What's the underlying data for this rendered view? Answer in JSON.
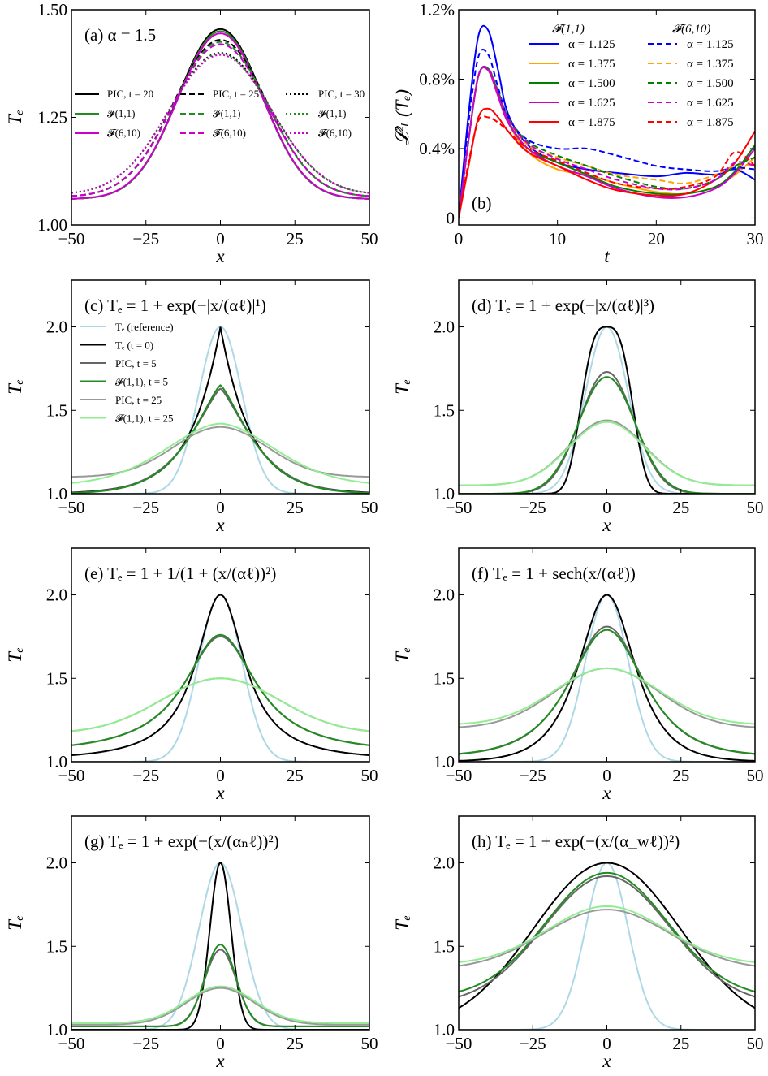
{
  "chart_data": [
    {
      "id": "a",
      "type": "line",
      "title": "(a) α = 1.5",
      "xlabel": "x",
      "ylabel": "Tₑ",
      "xlim": [
        -50,
        50
      ],
      "ylim": [
        1.0,
        1.5
      ],
      "xticks": [
        -50,
        -25,
        0,
        25,
        50
      ],
      "xticklabels": [
        "−50",
        "−25",
        "0",
        "25",
        "50"
      ],
      "yticks": [
        1.0,
        1.25,
        1.5
      ],
      "yticklabels": [
        "1.00",
        "1.25",
        "1.50"
      ],
      "legend_columns": 3,
      "series": [
        {
          "name": "PIC, t = 20",
          "color": "#000000",
          "dash": "",
          "f": "gen",
          "base": 1.06,
          "amp": 0.395,
          "w": 20,
          "p": 2
        },
        {
          "name": "𝓕(1,1)",
          "color": "#228b22",
          "dash": "",
          "f": "gen",
          "base": 1.06,
          "amp": 0.39,
          "w": 20,
          "p": 2
        },
        {
          "name": "𝓕(6,10)",
          "color": "#cc00cc",
          "dash": "",
          "f": "gen",
          "base": 1.06,
          "amp": 0.385,
          "w": 20.2,
          "p": 2
        },
        {
          "name": "PIC, t = 25",
          "color": "#000000",
          "dash": "7,4",
          "f": "gen",
          "base": 1.065,
          "amp": 0.365,
          "w": 22,
          "p": 2
        },
        {
          "name": "𝓕(1,1)",
          "color": "#228b22",
          "dash": "7,4",
          "f": "gen",
          "base": 1.065,
          "amp": 0.36,
          "w": 22,
          "p": 2
        },
        {
          "name": "𝓕(6,10)",
          "color": "#cc00cc",
          "dash": "7,4",
          "f": "gen",
          "base": 1.065,
          "amp": 0.355,
          "w": 22.2,
          "p": 2
        },
        {
          "name": "PIC, t = 30",
          "color": "#000000",
          "dash": "2,3",
          "f": "gen",
          "base": 1.07,
          "amp": 0.33,
          "w": 24,
          "p": 2
        },
        {
          "name": "𝓕(1,1)",
          "color": "#228b22",
          "dash": "2,3",
          "f": "gen",
          "base": 1.07,
          "amp": 0.328,
          "w": 24,
          "p": 2
        },
        {
          "name": "𝓕(6,10)",
          "color": "#cc00cc",
          "dash": "2,3",
          "f": "gen",
          "base": 1.07,
          "amp": 0.325,
          "w": 24.2,
          "p": 2
        }
      ]
    },
    {
      "id": "b",
      "type": "line",
      "title": "(b)",
      "xlabel": "t",
      "ylabel": "𝓛²ₜ (Tₑ)",
      "xlim": [
        0,
        30
      ],
      "ylim": [
        -0.04,
        1.2
      ],
      "unit": "%",
      "xticks": [
        0,
        10,
        20,
        30
      ],
      "xticklabels": [
        "0",
        "10",
        "20",
        "30"
      ],
      "yticks": [
        0,
        0.4,
        0.8,
        1.2
      ],
      "yticklabels": [
        "0",
        "0.4%",
        "0.8%",
        "1.2%"
      ],
      "legend_headers": [
        "𝓕(1,1)",
        "𝓕(6,10)"
      ],
      "x": [
        0,
        1,
        2,
        3,
        4,
        5,
        7,
        10,
        13,
        16,
        20,
        23,
        26,
        28,
        30
      ],
      "series": [
        {
          "name": "α = 1.125",
          "group": "𝓕(1,1)",
          "color": "#0000ff",
          "dash": "",
          "y": [
            0,
            0.6,
            1.05,
            1.08,
            0.85,
            0.6,
            0.42,
            0.32,
            0.28,
            0.26,
            0.24,
            0.26,
            0.25,
            0.28,
            0.22
          ]
        },
        {
          "name": "α = 1.375",
          "group": "𝓕(1,1)",
          "color": "#ffa500",
          "dash": "",
          "y": [
            0,
            0.45,
            0.82,
            0.85,
            0.7,
            0.55,
            0.38,
            0.28,
            0.25,
            0.2,
            0.15,
            0.14,
            0.18,
            0.25,
            0.35
          ]
        },
        {
          "name": "α = 1.500",
          "group": "𝓕(1,1)",
          "color": "#008000",
          "dash": "",
          "y": [
            0,
            0.45,
            0.82,
            0.86,
            0.72,
            0.56,
            0.4,
            0.32,
            0.25,
            0.18,
            0.14,
            0.14,
            0.18,
            0.27,
            0.42
          ]
        },
        {
          "name": "α = 1.625",
          "group": "𝓕(1,1)",
          "color": "#cc00cc",
          "dash": "",
          "y": [
            0,
            0.45,
            0.82,
            0.85,
            0.7,
            0.55,
            0.4,
            0.3,
            0.24,
            0.17,
            0.12,
            0.12,
            0.17,
            0.26,
            0.4
          ]
        },
        {
          "name": "α = 1.875",
          "group": "𝓕(1,1)",
          "color": "#ff0000",
          "dash": "",
          "y": [
            0,
            0.3,
            0.58,
            0.63,
            0.58,
            0.5,
            0.38,
            0.3,
            0.22,
            0.16,
            0.13,
            0.14,
            0.22,
            0.32,
            0.5
          ]
        },
        {
          "name": "α = 1.125",
          "group": "𝓕(6,10)",
          "color": "#0000ff",
          "dash": "7,4",
          "y": [
            0,
            0.55,
            0.93,
            0.94,
            0.75,
            0.58,
            0.45,
            0.4,
            0.4,
            0.36,
            0.3,
            0.28,
            0.27,
            0.29,
            0.28
          ]
        },
        {
          "name": "α = 1.375",
          "group": "𝓕(6,10)",
          "color": "#ffa500",
          "dash": "7,4",
          "y": [
            0,
            0.45,
            0.82,
            0.86,
            0.72,
            0.57,
            0.42,
            0.35,
            0.3,
            0.25,
            0.22,
            0.2,
            0.25,
            0.3,
            0.3
          ]
        },
        {
          "name": "α = 1.500",
          "group": "𝓕(6,10)",
          "color": "#008000",
          "dash": "7,4",
          "y": [
            0,
            0.45,
            0.82,
            0.86,
            0.73,
            0.58,
            0.44,
            0.36,
            0.3,
            0.24,
            0.18,
            0.17,
            0.22,
            0.3,
            0.35
          ]
        },
        {
          "name": "α = 1.625",
          "group": "𝓕(6,10)",
          "color": "#cc00cc",
          "dash": "7,4",
          "y": [
            0,
            0.45,
            0.82,
            0.86,
            0.72,
            0.57,
            0.43,
            0.34,
            0.28,
            0.22,
            0.17,
            0.17,
            0.22,
            0.32,
            0.3
          ]
        },
        {
          "name": "α = 1.875",
          "group": "𝓕(6,10)",
          "color": "#ff0000",
          "dash": "7,4",
          "y": [
            0,
            0.32,
            0.56,
            0.58,
            0.55,
            0.5,
            0.4,
            0.33,
            0.26,
            0.2,
            0.17,
            0.18,
            0.24,
            0.38,
            0.3
          ]
        }
      ]
    },
    {
      "id": "c",
      "type": "line",
      "title": "(c) Tₑ = 1 + exp(−|x/(αℓ)|¹)",
      "xlabel": "x",
      "ylabel": "Tₑ",
      "xlim": [
        -50,
        50
      ],
      "ylim": [
        1.0,
        2.28
      ],
      "xticks": [
        -50,
        -25,
        0,
        25,
        50
      ],
      "xticklabels": [
        "−50",
        "−25",
        "0",
        "25",
        "50"
      ],
      "yticks": [
        1.0,
        1.5,
        2.0
      ],
      "yticklabels": [
        "1.0",
        "1.5",
        "2.0"
      ],
      "legend": true,
      "series": [
        {
          "name": "Tₑ (reference)",
          "color": "#add8e6",
          "f": "gen",
          "base": 1,
          "amp": 1,
          "w": 10.2,
          "p": 2
        },
        {
          "name": "Tₑ (t = 0)",
          "color": "#000000",
          "f": "gen",
          "base": 1,
          "amp": 1,
          "w": 10.2,
          "p": 1
        },
        {
          "name": "PIC,   t = 5",
          "color": "#666666",
          "f": "gen",
          "base": 1.0,
          "amp": 0.63,
          "w": 15,
          "p": 1.3
        },
        {
          "name": "𝓕(1,1), t = 5",
          "color": "#228b22",
          "f": "gen",
          "base": 1.0,
          "amp": 0.65,
          "w": 14.5,
          "p": 1.3
        },
        {
          "name": "PIC,   t = 25",
          "color": "#999999",
          "f": "gen",
          "base": 1.1,
          "amp": 0.3,
          "w": 22,
          "p": 2
        },
        {
          "name": "𝓕(1,1), t = 25",
          "color": "#90ee90",
          "f": "gen",
          "base": 1.05,
          "amp": 0.37,
          "w": 26,
          "p": 1.8
        }
      ]
    },
    {
      "id": "d",
      "type": "line",
      "title": "(d) Tₑ = 1 + exp(−|x/(αℓ)|³)",
      "xlabel": "x",
      "ylabel": "Tₑ",
      "xlim": [
        -50,
        50
      ],
      "ylim": [
        1.0,
        2.28
      ],
      "xticks": [
        -50,
        -25,
        0,
        25,
        50
      ],
      "xticklabels": [
        "−50",
        "−25",
        "0",
        "25",
        "50"
      ],
      "yticks": [
        1.0,
        1.5,
        2.0
      ],
      "yticklabels": [
        "1.0",
        "1.5",
        "2.0"
      ],
      "series": [
        {
          "name": "Tₑ (reference)",
          "color": "#add8e6",
          "f": "gen",
          "base": 1,
          "amp": 1,
          "w": 10.2,
          "p": 2
        },
        {
          "name": "Tₑ (t = 0)",
          "color": "#000000",
          "f": "gen",
          "base": 1,
          "amp": 1,
          "w": 10.2,
          "p": 3
        },
        {
          "name": "PIC, t = 5",
          "color": "#666666",
          "f": "gen",
          "base": 1.0,
          "amp": 0.73,
          "w": 13,
          "p": 2
        },
        {
          "name": "𝓕(1,1), t = 5",
          "color": "#228b22",
          "f": "gen",
          "base": 1.0,
          "amp": 0.7,
          "w": 13.5,
          "p": 2
        },
        {
          "name": "PIC, t = 25",
          "color": "#999999",
          "f": "gen",
          "base": 1.05,
          "amp": 0.39,
          "w": 18,
          "p": 2
        },
        {
          "name": "𝓕(1,1), t = 25",
          "color": "#90ee90",
          "f": "gen",
          "base": 1.05,
          "amp": 0.38,
          "w": 18,
          "p": 2
        }
      ]
    },
    {
      "id": "e",
      "type": "line",
      "title": "(e) Tₑ = 1 + 1/(1 + (x/(αℓ))²)",
      "xlabel": "x",
      "ylabel": "Tₑ",
      "xlim": [
        -50,
        50
      ],
      "ylim": [
        1.0,
        2.28
      ],
      "xticks": [
        -50,
        -25,
        0,
        25,
        50
      ],
      "xticklabels": [
        "−50",
        "−25",
        "0",
        "25",
        "50"
      ],
      "yticks": [
        1.0,
        1.5,
        2.0
      ],
      "yticklabels": [
        "1.0",
        "1.5",
        "2.0"
      ],
      "series": [
        {
          "name": "Tₑ (reference)",
          "color": "#add8e6",
          "f": "gen",
          "base": 1,
          "amp": 1,
          "w": 10.2,
          "p": 2
        },
        {
          "name": "Tₑ (t = 0)",
          "color": "#000000",
          "f": "lor",
          "base": 1,
          "amp": 1,
          "w": 10
        },
        {
          "name": "PIC, t = 5",
          "color": "#666666",
          "f": "lor",
          "base": 1.04,
          "amp": 0.71,
          "w": 15
        },
        {
          "name": "𝓕(1,1), t = 5",
          "color": "#228b22",
          "f": "lor",
          "base": 1.04,
          "amp": 0.72,
          "w": 14.8
        },
        {
          "name": "PIC, t = 25",
          "color": "#999999",
          "f": "gen",
          "base": 1.17,
          "amp": 0.33,
          "w": 28,
          "p": 2
        },
        {
          "name": "𝓕(1,1), t = 25",
          "color": "#90ee90",
          "f": "gen",
          "base": 1.17,
          "amp": 0.33,
          "w": 28,
          "p": 2
        }
      ]
    },
    {
      "id": "f",
      "type": "line",
      "title": "(f) Tₑ = 1 + sech(x/(αℓ))",
      "xlabel": "x",
      "ylabel": "Tₑ",
      "xlim": [
        -50,
        50
      ],
      "ylim": [
        1.0,
        2.28
      ],
      "xticks": [
        -50,
        -25,
        0,
        25,
        50
      ],
      "xticklabels": [
        "−50",
        "−25",
        "0",
        "25",
        "50"
      ],
      "yticks": [
        1.0,
        1.5,
        2.0
      ],
      "yticklabels": [
        "1.0",
        "1.5",
        "2.0"
      ],
      "series": [
        {
          "name": "Tₑ (reference)",
          "color": "#add8e6",
          "f": "gen",
          "base": 1,
          "amp": 1,
          "w": 10.2,
          "p": 2
        },
        {
          "name": "Tₑ (t = 0)",
          "color": "#000000",
          "f": "sech",
          "base": 1,
          "amp": 1,
          "w": 8.4
        },
        {
          "name": "PIC, t = 5",
          "color": "#666666",
          "f": "sech",
          "base": 1.03,
          "amp": 0.78,
          "w": 11
        },
        {
          "name": "𝓕(1,1), t = 5",
          "color": "#228b22",
          "f": "sech",
          "base": 1.03,
          "amp": 0.76,
          "w": 11.2
        },
        {
          "name": "PIC, t = 25",
          "color": "#999999",
          "f": "gen",
          "base": 1.2,
          "amp": 0.36,
          "w": 25,
          "p": 2
        },
        {
          "name": "𝓕(1,1), t = 25",
          "color": "#90ee90",
          "f": "gen",
          "base": 1.22,
          "amp": 0.34,
          "w": 25,
          "p": 2
        }
      ]
    },
    {
      "id": "g",
      "type": "line",
      "title": "(g) Tₑ = 1 + exp(−(x/(αₙℓ))²)",
      "xlabel": "x",
      "ylabel": "Tₑ",
      "xlim": [
        -50,
        50
      ],
      "ylim": [
        1.0,
        2.28
      ],
      "xticks": [
        -50,
        -25,
        0,
        25,
        50
      ],
      "xticklabels": [
        "−50",
        "−25",
        "0",
        "25",
        "50"
      ],
      "yticks": [
        1.0,
        1.5,
        2.0
      ],
      "yticklabels": [
        "1.0",
        "1.5",
        "2.0"
      ],
      "series": [
        {
          "name": "Tₑ (reference)",
          "color": "#add8e6",
          "f": "gen",
          "base": 1,
          "amp": 1,
          "w": 10.2,
          "p": 2
        },
        {
          "name": "Tₑ (t = 0)",
          "color": "#000000",
          "f": "gen",
          "base": 1,
          "amp": 1,
          "w": 5,
          "p": 2
        },
        {
          "name": "PIC, t = 5",
          "color": "#666666",
          "f": "gen",
          "base": 1.02,
          "amp": 0.46,
          "w": 7.5,
          "p": 2
        },
        {
          "name": "𝓕(1,1), t = 5",
          "color": "#228b22",
          "f": "gen",
          "base": 1.02,
          "amp": 0.49,
          "w": 7.3,
          "p": 2
        },
        {
          "name": "PIC, t = 25",
          "color": "#999999",
          "f": "gen",
          "base": 1.03,
          "amp": 0.22,
          "w": 16,
          "p": 2
        },
        {
          "name": "𝓕(1,1), t = 25",
          "color": "#90ee90",
          "f": "gen",
          "base": 1.04,
          "amp": 0.22,
          "w": 16,
          "p": 2
        }
      ]
    },
    {
      "id": "h",
      "type": "line",
      "title": "(h) Tₑ = 1 + exp(−(x/(α_wℓ))²)",
      "xlabel": "x",
      "ylabel": "Tₑ",
      "xlim": [
        -50,
        50
      ],
      "ylim": [
        1.0,
        2.28
      ],
      "xticks": [
        -50,
        -25,
        0,
        25,
        50
      ],
      "xticklabels": [
        "−50",
        "−25",
        "0",
        "25",
        "50"
      ],
      "yticks": [
        1.0,
        1.5,
        2.0
      ],
      "yticklabels": [
        "1.0",
        "1.5",
        "2.0"
      ],
      "series": [
        {
          "name": "Tₑ (reference)",
          "color": "#add8e6",
          "f": "gen",
          "base": 1,
          "amp": 1,
          "w": 10.2,
          "p": 2
        },
        {
          "name": "Tₑ (t = 0)",
          "color": "#000000",
          "f": "gen",
          "base": 1,
          "amp": 1,
          "w": 35,
          "p": 2
        },
        {
          "name": "PIC, t = 5",
          "color": "#666666",
          "f": "gen",
          "base": 1.15,
          "amp": 0.77,
          "w": 30,
          "p": 2
        },
        {
          "name": "𝓕(1,1), t = 5",
          "color": "#228b22",
          "f": "gen",
          "base": 1.19,
          "amp": 0.75,
          "w": 29,
          "p": 2
        },
        {
          "name": "PIC, t = 25",
          "color": "#999999",
          "f": "gen",
          "base": 1.36,
          "amp": 0.36,
          "w": 30,
          "p": 2
        },
        {
          "name": "𝓕(1,1), t = 25",
          "color": "#90ee90",
          "f": "gen",
          "base": 1.39,
          "amp": 0.35,
          "w": 28,
          "p": 2
        }
      ]
    }
  ]
}
